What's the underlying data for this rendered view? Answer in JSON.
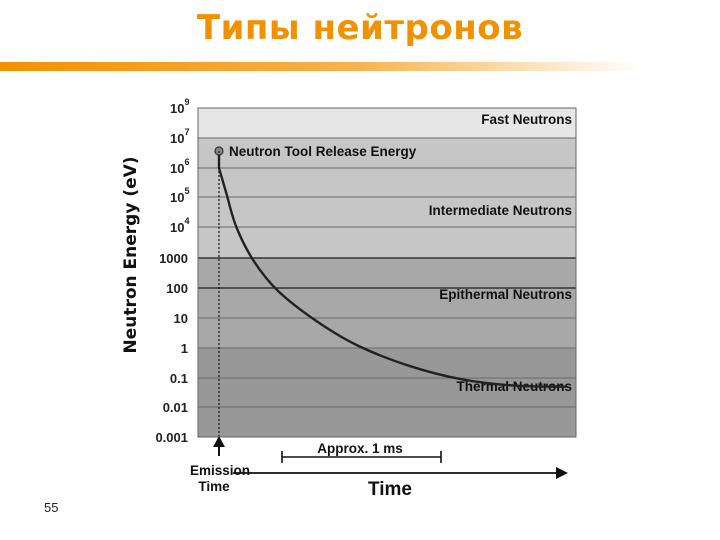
{
  "slide": {
    "title": "Типы нейтронов",
    "number": "55",
    "colors": {
      "title": "#f29100",
      "rule_start": "#f29100",
      "rule_end": "#ffffff"
    }
  },
  "chart_data": {
    "type": "line",
    "ylabel": "Neutron Energy (eV)",
    "xlabel": "Time",
    "y_scale": "log",
    "ylim": [
      0.001,
      1000000000
    ],
    "y_ticks": [
      {
        "base": "10",
        "exp": "9",
        "value": 1000000000
      },
      {
        "base": "10",
        "exp": "7",
        "value": 10000000
      },
      {
        "base": "10",
        "exp": "6",
        "value": 1000000
      },
      {
        "base": "10",
        "exp": "5",
        "value": 100000
      },
      {
        "base": "10",
        "exp": "4",
        "value": 10000
      },
      {
        "base": "1000",
        "exp": "",
        "value": 1000
      },
      {
        "base": "100",
        "exp": "",
        "value": 100
      },
      {
        "base": "10",
        "exp": "",
        "value": 10
      },
      {
        "base": "1",
        "exp": "",
        "value": 1
      },
      {
        "base": "0.1",
        "exp": "",
        "value": 0.1
      },
      {
        "base": "0.01",
        "exp": "",
        "value": 0.01
      },
      {
        "base": "0.001",
        "exp": "",
        "value": 0.001
      }
    ],
    "bands": [
      {
        "label": "Fast Neutrons",
        "from": 10000000,
        "to": 1000000000,
        "color": "#e6e6e6"
      },
      {
        "label": "Intermediate Neutrons",
        "from": 1000,
        "to": 10000000,
        "color": "#c6c6c6"
      },
      {
        "label": "Epithermal Neutrons",
        "from": 1,
        "to": 1000,
        "color": "#a8a8a8"
      },
      {
        "label": "Thermal Neutrons",
        "from": 0.001,
        "to": 1,
        "color": "#989898"
      }
    ],
    "release_point": {
      "label": "Neutron Tool Release Energy",
      "energy": 1000000
    },
    "curve": [
      {
        "t": 0.0,
        "e": 1000000
      },
      {
        "t": 0.02,
        "e": 150000
      },
      {
        "t": 0.05,
        "e": 10000
      },
      {
        "t": 0.1,
        "e": 800
      },
      {
        "t": 0.17,
        "e": 80
      },
      {
        "t": 0.28,
        "e": 8
      },
      {
        "t": 0.4,
        "e": 1.2
      },
      {
        "t": 0.55,
        "e": 0.25
      },
      {
        "t": 0.7,
        "e": 0.09
      },
      {
        "t": 0.85,
        "e": 0.055
      },
      {
        "t": 1.0,
        "e": 0.05
      }
    ],
    "annotations": {
      "emission": [
        "Emission",
        "Time"
      ],
      "approx": "Approx. 1 ms",
      "time": "Time"
    }
  }
}
